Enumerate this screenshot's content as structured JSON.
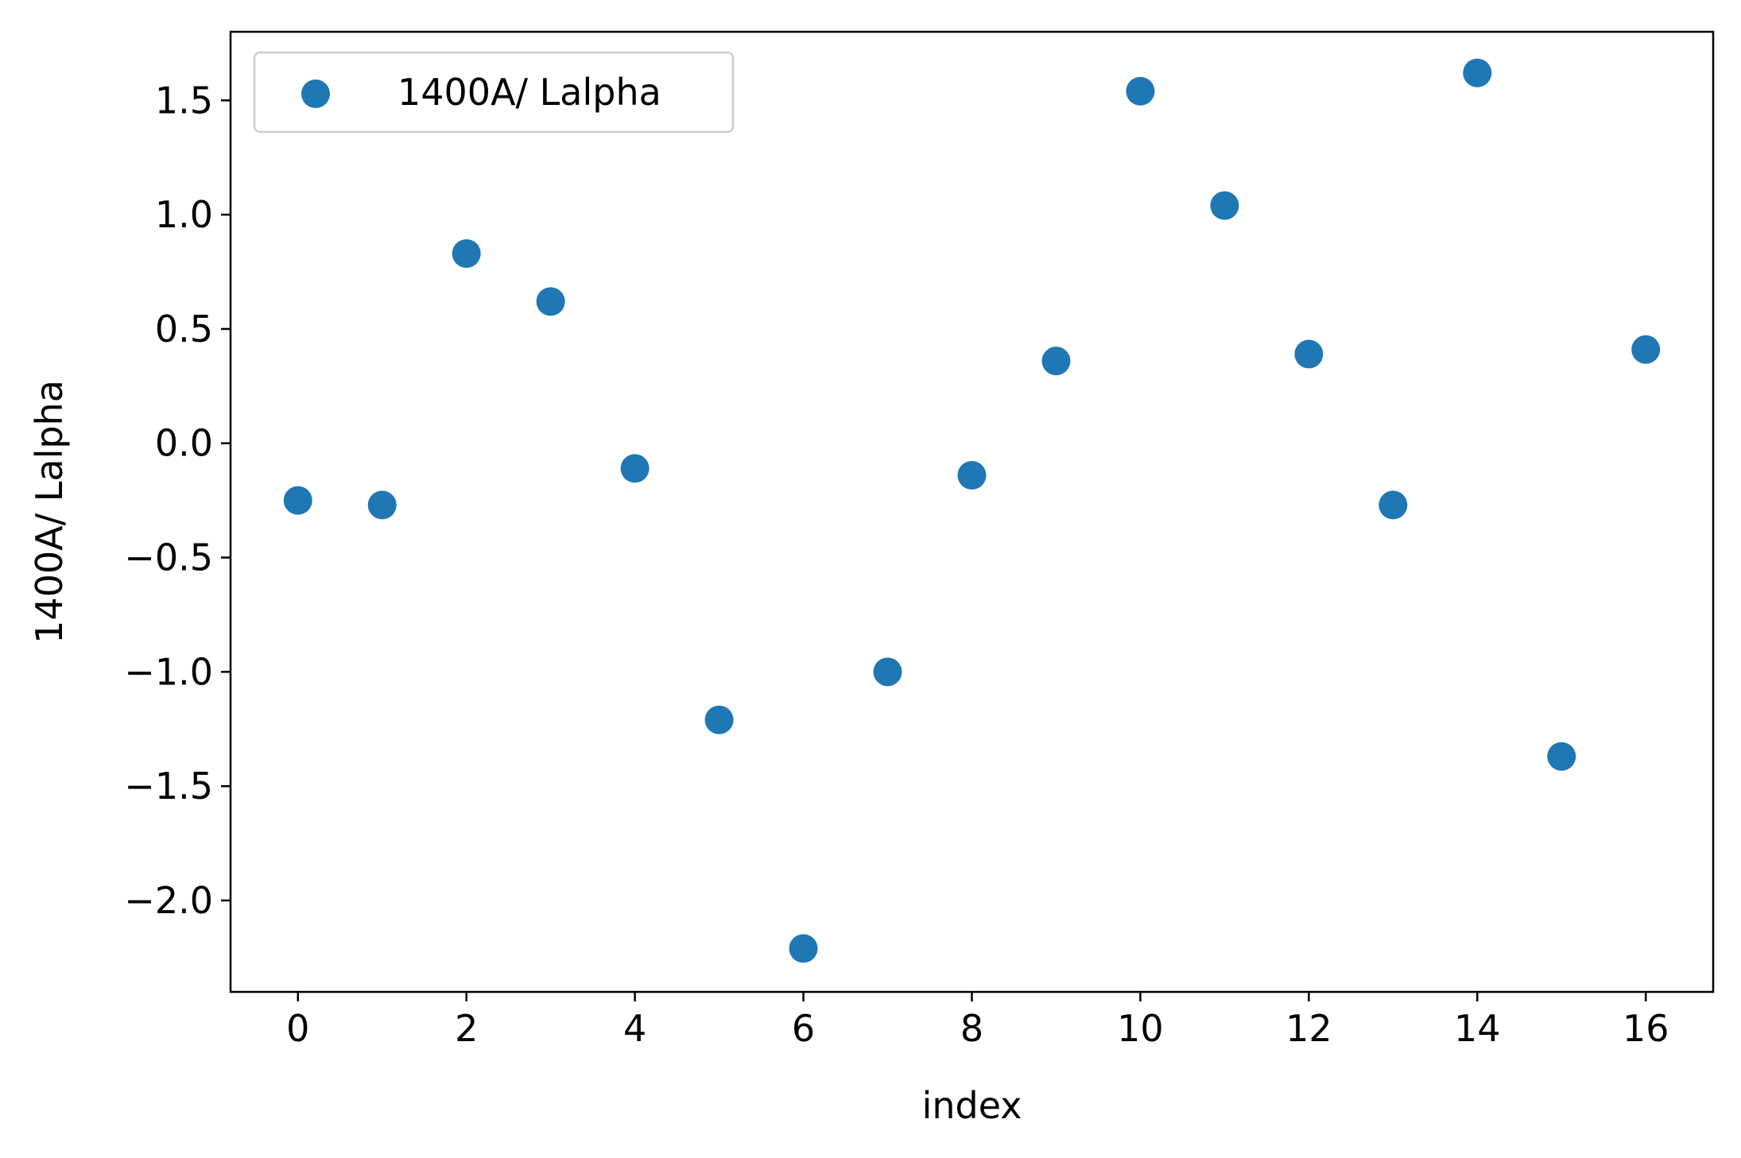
{
  "chart_data": {
    "type": "scatter",
    "title": "",
    "xlabel": "index",
    "ylabel": "1400A/ Lalpha",
    "xlim": [
      -0.8,
      16.8
    ],
    "ylim": [
      -2.4,
      1.8
    ],
    "x_ticks": [
      0,
      2,
      4,
      6,
      8,
      10,
      12,
      14,
      16
    ],
    "x_tick_labels": [
      "0",
      "2",
      "4",
      "6",
      "8",
      "10",
      "12",
      "14",
      "16"
    ],
    "y_ticks": [
      1.5,
      1.0,
      0.5,
      0.0,
      -0.5,
      -1.0,
      -1.5,
      -2.0
    ],
    "y_tick_labels": [
      "1.5",
      "1.0",
      "0.5",
      "0.0",
      "−0.5",
      "−1.0",
      "−1.5",
      "−2.0"
    ],
    "grid": false,
    "legend_position": "top-left",
    "series": [
      {
        "name": "1400A/ Lalpha",
        "color": "#1f77b4",
        "x": [
          0,
          1,
          2,
          3,
          4,
          5,
          6,
          7,
          8,
          9,
          10,
          11,
          12,
          13,
          14,
          15,
          16
        ],
        "y": [
          -0.25,
          -0.27,
          0.83,
          0.62,
          -0.11,
          -1.21,
          -2.21,
          -1.0,
          -0.14,
          0.36,
          1.54,
          1.04,
          0.39,
          -0.27,
          1.62,
          -1.37,
          0.41
        ]
      }
    ]
  }
}
